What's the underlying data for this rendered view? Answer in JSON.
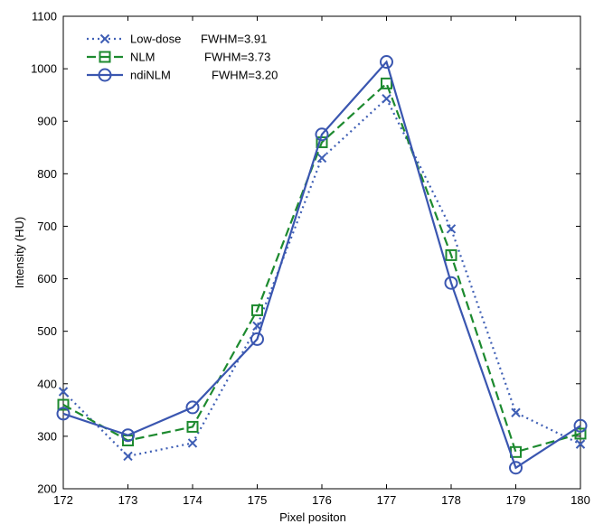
{
  "chart_data": {
    "type": "line",
    "xlabel": "Pixel positon",
    "ylabel": "Intensity (HU)",
    "xlim": [
      172,
      180
    ],
    "ylim": [
      200,
      1100
    ],
    "xticks": [
      "172",
      "173",
      "174",
      "175",
      "176",
      "177",
      "178",
      "179",
      "180"
    ],
    "yticks": [
      "200",
      "300",
      "400",
      "500",
      "600",
      "700",
      "800",
      "900",
      "1000",
      "1100"
    ],
    "grid": false,
    "legend_position": "top-left",
    "x": [
      172,
      173,
      174,
      175,
      176,
      177,
      178,
      179,
      180
    ],
    "series": [
      {
        "name": "Low-dose",
        "annotation": "FWHM=3.91",
        "values": [
          385,
          262,
          287,
          510,
          830,
          943,
          695,
          345,
          285
        ],
        "color": "#3f5fb5",
        "line_style": "dotted",
        "marker": "x"
      },
      {
        "name": "NLM",
        "annotation": "FWHM=3.73",
        "values": [
          360,
          292,
          318,
          540,
          860,
          972,
          645,
          270,
          305
        ],
        "color": "#1d8a2f",
        "line_style": "dashed",
        "marker": "square"
      },
      {
        "name": "ndiNLM",
        "annotation": "FWHM=3.20",
        "values": [
          343,
          302,
          355,
          485,
          875,
          1013,
          592,
          240,
          320
        ],
        "color": "#3a56b0",
        "line_style": "solid",
        "marker": "circle"
      }
    ]
  }
}
